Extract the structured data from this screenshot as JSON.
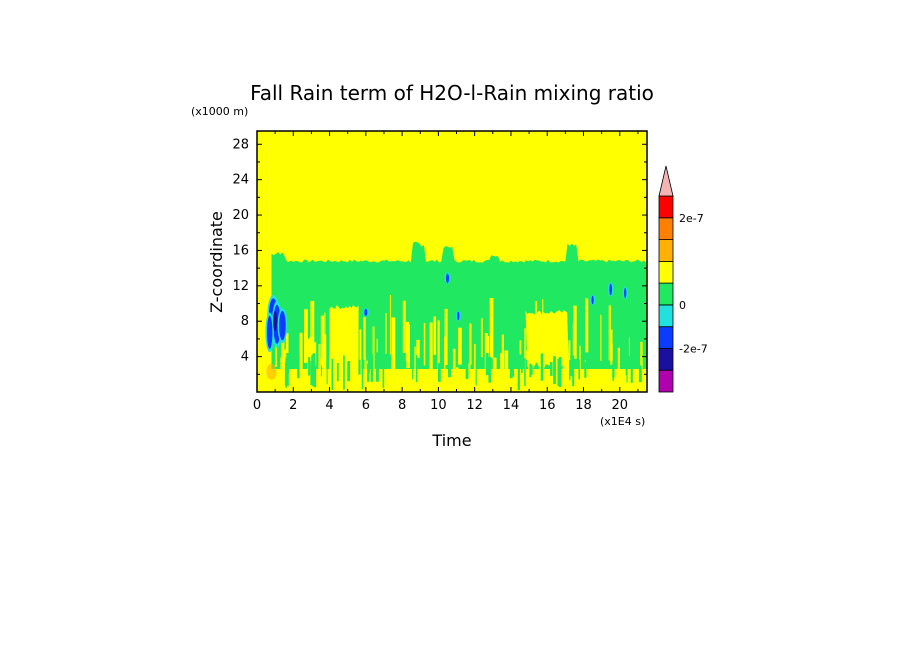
{
  "chart_data": {
    "type": "heatmap",
    "title": "Fall Rain term of H2O-l-Rain mixing ratio",
    "xlabel": "Time",
    "ylabel": "Z-coordinate",
    "x_unit": "(x1E4 s)",
    "y_unit": "(x1000 m)",
    "xlim": [
      0,
      21.5
    ],
    "ylim": [
      0,
      29.5
    ],
    "xticks": [
      0,
      2,
      4,
      6,
      8,
      10,
      12,
      14,
      16,
      18,
      20
    ],
    "yticks": [
      4,
      8,
      12,
      16,
      20,
      24,
      28
    ],
    "xtick_labels": [
      "0",
      "2",
      "4",
      "6",
      "8",
      "10",
      "12",
      "14",
      "16",
      "18",
      "20"
    ],
    "ytick_labels": [
      "4",
      "8",
      "12",
      "16",
      "20",
      "24",
      "28"
    ],
    "colorbar": {
      "levels": [
        {
          "color": "#b000b0"
        },
        {
          "color": "#1a10a0"
        },
        {
          "color": "#0a3cff"
        },
        {
          "color": "#20e0e0"
        },
        {
          "color": "#20e860"
        },
        {
          "color": "#ffff00"
        },
        {
          "color": "#ffb000"
        },
        {
          "color": "#ff8000"
        },
        {
          "color": "#ff0000"
        }
      ],
      "overflow_color": "#f4b4b4",
      "tick_labels": [
        "2e-7",
        "0",
        "-2e-7"
      ]
    },
    "regions": {
      "background_color": "#ffff00",
      "main_band": {
        "color": "#20e860",
        "x": [
          0.8,
          21.5
        ],
        "z_top": 14.8
      },
      "yellow_gaps": [
        {
          "x": [
            4.0,
            5.6
          ],
          "z": [
            2.2,
            9.6
          ]
        },
        {
          "x": [
            14.8,
            17.2
          ],
          "z": [
            2.8,
            9.0
          ]
        }
      ],
      "low_yellow_layer_top": 2.6
    }
  }
}
